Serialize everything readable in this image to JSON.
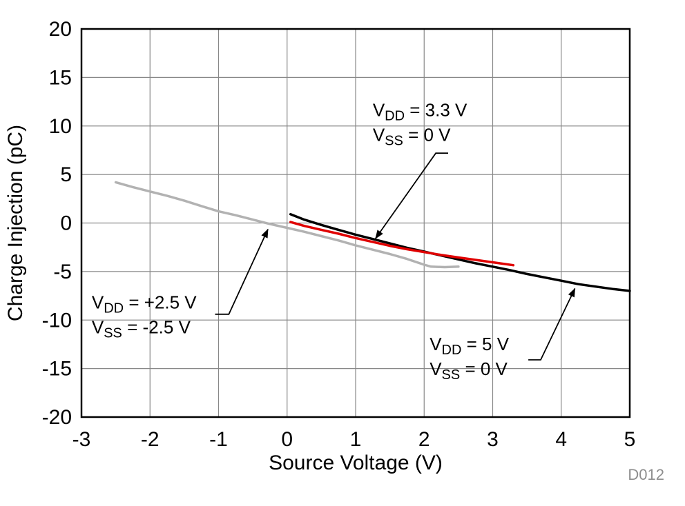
{
  "figure_id": "D012",
  "chart_data": {
    "type": "line",
    "title": "",
    "xlabel": "Source Voltage (V)",
    "ylabel": "Charge Injection (pC)",
    "xlim": [
      -3,
      5
    ],
    "ylim": [
      -20,
      20
    ],
    "xticks": [
      -3,
      -2,
      -1,
      0,
      1,
      2,
      3,
      4,
      5
    ],
    "yticks": [
      -20,
      -15,
      -10,
      -5,
      0,
      5,
      10,
      15,
      20
    ],
    "grid": true,
    "grid_color": "#888888",
    "series": [
      {
        "name": "vdd-plus2p5-vss-minus2p5",
        "label": "VDD = +2.5 V, VSS = -2.5 V",
        "color": "#b2b2b2",
        "width": 3.5,
        "points": [
          [
            -2.5,
            4.2
          ],
          [
            -2.25,
            3.7
          ],
          [
            -2,
            3.25
          ],
          [
            -1.75,
            2.8
          ],
          [
            -1.5,
            2.3
          ],
          [
            -1.25,
            1.75
          ],
          [
            -1,
            1.2
          ],
          [
            -0.75,
            0.8
          ],
          [
            -0.5,
            0.35
          ],
          [
            -0.25,
            -0.1
          ],
          [
            0,
            -0.5
          ],
          [
            0.25,
            -0.9
          ],
          [
            0.5,
            -1.35
          ],
          [
            0.75,
            -1.8
          ],
          [
            1,
            -2.3
          ],
          [
            1.25,
            -2.75
          ],
          [
            1.5,
            -3.2
          ],
          [
            1.75,
            -3.7
          ],
          [
            2,
            -4.3
          ],
          [
            2.1,
            -4.5
          ],
          [
            2.3,
            -4.55
          ],
          [
            2.5,
            -4.5
          ]
        ]
      },
      {
        "name": "vdd-5-vss-0",
        "label": "VDD = 5 V, VSS = 0 V",
        "color": "#000000",
        "width": 3.5,
        "points": [
          [
            0.05,
            0.9
          ],
          [
            0.25,
            0.35
          ],
          [
            0.5,
            -0.2
          ],
          [
            0.75,
            -0.7
          ],
          [
            1,
            -1.2
          ],
          [
            1.25,
            -1.65
          ],
          [
            1.5,
            -2.1
          ],
          [
            1.75,
            -2.55
          ],
          [
            2,
            -2.95
          ],
          [
            2.25,
            -3.35
          ],
          [
            2.5,
            -3.75
          ],
          [
            2.75,
            -4.15
          ],
          [
            3,
            -4.5
          ],
          [
            3.25,
            -4.85
          ],
          [
            3.5,
            -5.25
          ],
          [
            3.75,
            -5.6
          ],
          [
            4,
            -5.95
          ],
          [
            4.25,
            -6.3
          ],
          [
            4.5,
            -6.55
          ],
          [
            4.75,
            -6.8
          ],
          [
            5,
            -7
          ]
        ]
      },
      {
        "name": "vdd-3p3-vss-0",
        "label": "VDD = 3.3 V, VSS = 0 V",
        "color": "#e00000",
        "width": 3.5,
        "points": [
          [
            0.05,
            0.1
          ],
          [
            0.25,
            -0.3
          ],
          [
            0.5,
            -0.7
          ],
          [
            0.75,
            -1.1
          ],
          [
            1,
            -1.55
          ],
          [
            1.25,
            -1.95
          ],
          [
            1.5,
            -2.35
          ],
          [
            1.75,
            -2.7
          ],
          [
            2,
            -3
          ],
          [
            2.25,
            -3.3
          ],
          [
            2.5,
            -3.55
          ],
          [
            2.75,
            -3.8
          ],
          [
            3,
            -4.05
          ],
          [
            3.3,
            -4.35
          ]
        ]
      }
    ],
    "annotations": [
      {
        "name": "annotation-vdd-3p3",
        "lines": [
          [
            {
              "t": "V"
            },
            {
              "t": "DD",
              "sub": true
            },
            {
              "t": " = 3.3 V"
            }
          ],
          [
            {
              "t": "V"
            },
            {
              "t": "SS",
              "sub": true
            },
            {
              "t": " = 0 V"
            }
          ]
        ],
        "text_pos": [
          1.25,
          11.0
        ],
        "leader": [
          [
            2.35,
            7.2
          ],
          [
            2.17,
            7.2
          ],
          [
            1.29,
            -1.6
          ]
        ]
      },
      {
        "name": "annotation-vdd-2p5",
        "lines": [
          [
            {
              "t": "V"
            },
            {
              "t": "DD",
              "sub": true
            },
            {
              "t": " = +2.5 V"
            }
          ],
          [
            {
              "t": "V"
            },
            {
              "t": "SS",
              "sub": true
            },
            {
              "t": " = -2.5 V"
            }
          ]
        ],
        "text_pos": [
          -2.85,
          -8.8
        ],
        "leader": [
          [
            -1.05,
            -9.4
          ],
          [
            -0.85,
            -9.4
          ],
          [
            -0.28,
            -0.65
          ]
        ]
      },
      {
        "name": "annotation-vdd-5",
        "lines": [
          [
            {
              "t": "V"
            },
            {
              "t": "DD",
              "sub": true
            },
            {
              "t": " = 5 V"
            }
          ],
          [
            {
              "t": "V"
            },
            {
              "t": "SS",
              "sub": true
            },
            {
              "t": " = 0 V"
            }
          ]
        ],
        "text_pos": [
          2.08,
          -13.1
        ],
        "leader": [
          [
            3.52,
            -14.1
          ],
          [
            3.7,
            -14.1
          ],
          [
            4.2,
            -6.75
          ]
        ]
      }
    ]
  }
}
